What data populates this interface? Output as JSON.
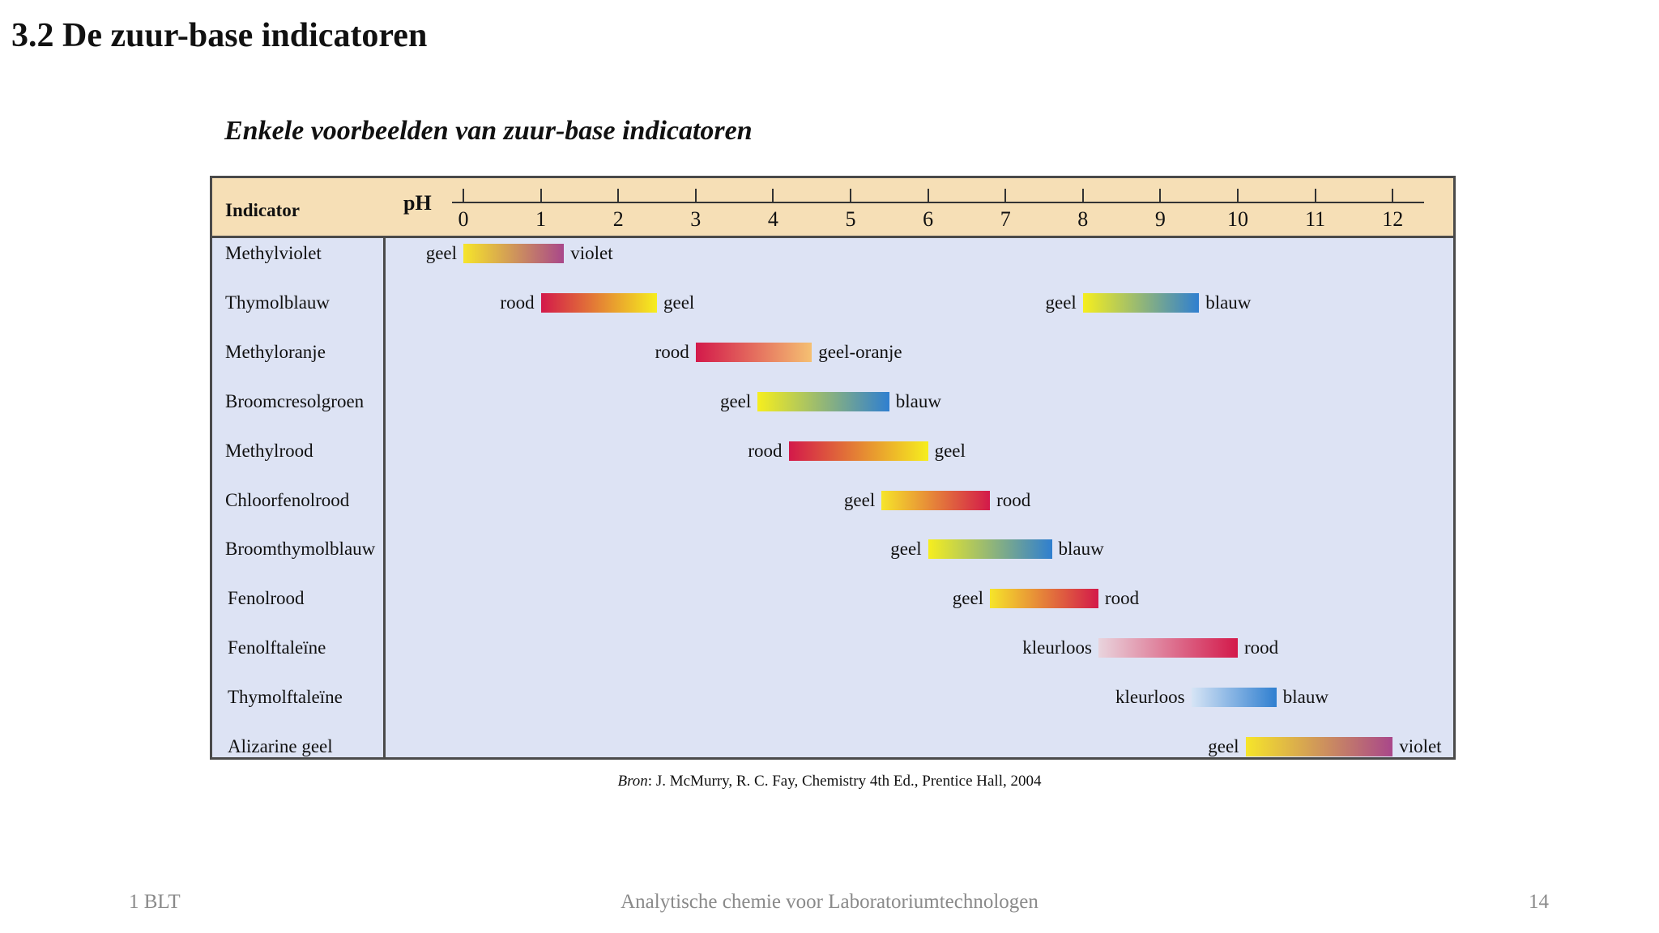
{
  "title": "3.2 De zuur-base indicatoren",
  "subtitle": "Enkele voorbeelden van zuur-base indicatoren",
  "chart_data": {
    "type": "table",
    "column_header": "Indicator",
    "axis_label": "pH",
    "ph_ticks": [
      "0",
      "1",
      "2",
      "3",
      "4",
      "5",
      "6",
      "7",
      "8",
      "9",
      "10",
      "11",
      "12"
    ],
    "rows": [
      {
        "name": "Methylviolet",
        "ranges": [
          {
            "from": 0.0,
            "to": 1.3,
            "low_label": "geel",
            "high_label": "violet",
            "colors": [
              "#f6e52a",
              "#a9478a"
            ]
          }
        ]
      },
      {
        "name": "Thymolblauw",
        "ranges": [
          {
            "from": 1.0,
            "to": 2.5,
            "low_label": "rood",
            "high_label": "geel",
            "colors": [
              "#d3194a",
              "#f6ee1e"
            ]
          },
          {
            "from": 8.0,
            "to": 9.5,
            "low_label": "geel",
            "high_label": "blauw",
            "colors": [
              "#f6ee1e",
              "#2f7fd0"
            ]
          }
        ]
      },
      {
        "name": "Methyloranje",
        "ranges": [
          {
            "from": 3.0,
            "to": 4.5,
            "low_label": "rood",
            "high_label": "geel-oranje",
            "colors": [
              "#d3194a",
              "#f5c072"
            ]
          }
        ]
      },
      {
        "name": "Broomcresolgroen",
        "ranges": [
          {
            "from": 3.8,
            "to": 5.5,
            "low_label": "geel",
            "high_label": "blauw",
            "colors": [
              "#f6ee1e",
              "#2f7fd0"
            ]
          }
        ]
      },
      {
        "name": "Methylrood",
        "ranges": [
          {
            "from": 4.2,
            "to": 6.0,
            "low_label": "rood",
            "high_label": "geel",
            "colors": [
              "#d3194a",
              "#f6ee1e"
            ]
          }
        ]
      },
      {
        "name": "Chloorfenolrood",
        "ranges": [
          {
            "from": 5.4,
            "to": 6.8,
            "low_label": "geel",
            "high_label": "rood",
            "colors": [
              "#f6e52a",
              "#d3194a"
            ]
          }
        ]
      },
      {
        "name": "Broomthymolblauw",
        "ranges": [
          {
            "from": 6.0,
            "to": 7.6,
            "low_label": "geel",
            "high_label": "blauw",
            "colors": [
              "#f6ee1e",
              "#2f7fd0"
            ]
          }
        ]
      },
      {
        "name": "Fenolrood",
        "ranges": [
          {
            "from": 6.8,
            "to": 8.2,
            "low_label": "geel",
            "high_label": "rood",
            "colors": [
              "#f6e52a",
              "#d3194a"
            ]
          }
        ]
      },
      {
        "name": "Fenolftaleïne",
        "ranges": [
          {
            "from": 8.2,
            "to": 10.0,
            "low_label": "kleurloos",
            "high_label": "rood",
            "colors": [
              "#e9d4dd",
              "#d3194a"
            ]
          }
        ]
      },
      {
        "name": "Thymolftaleïne",
        "ranges": [
          {
            "from": 9.4,
            "to": 10.5,
            "low_label": "kleurloos",
            "high_label": "blauw",
            "colors": [
              "#d6e4f5",
              "#2f7fd0"
            ]
          }
        ]
      },
      {
        "name": "Alizarine geel",
        "ranges": [
          {
            "from": 10.1,
            "to": 12.0,
            "low_label": "geel",
            "high_label": "violet",
            "colors": [
              "#f6e52a",
              "#a9478a"
            ]
          }
        ]
      }
    ]
  },
  "source": {
    "prefix": "Bron",
    "text": ": J. McMurry, R. C. Fay, Chemistry 4th Ed., Prentice Hall, 2004"
  },
  "footer": {
    "left": "1 BLT",
    "center": "Analytische chemie voor Laboratoriumtechnologen",
    "page_number": "14"
  }
}
